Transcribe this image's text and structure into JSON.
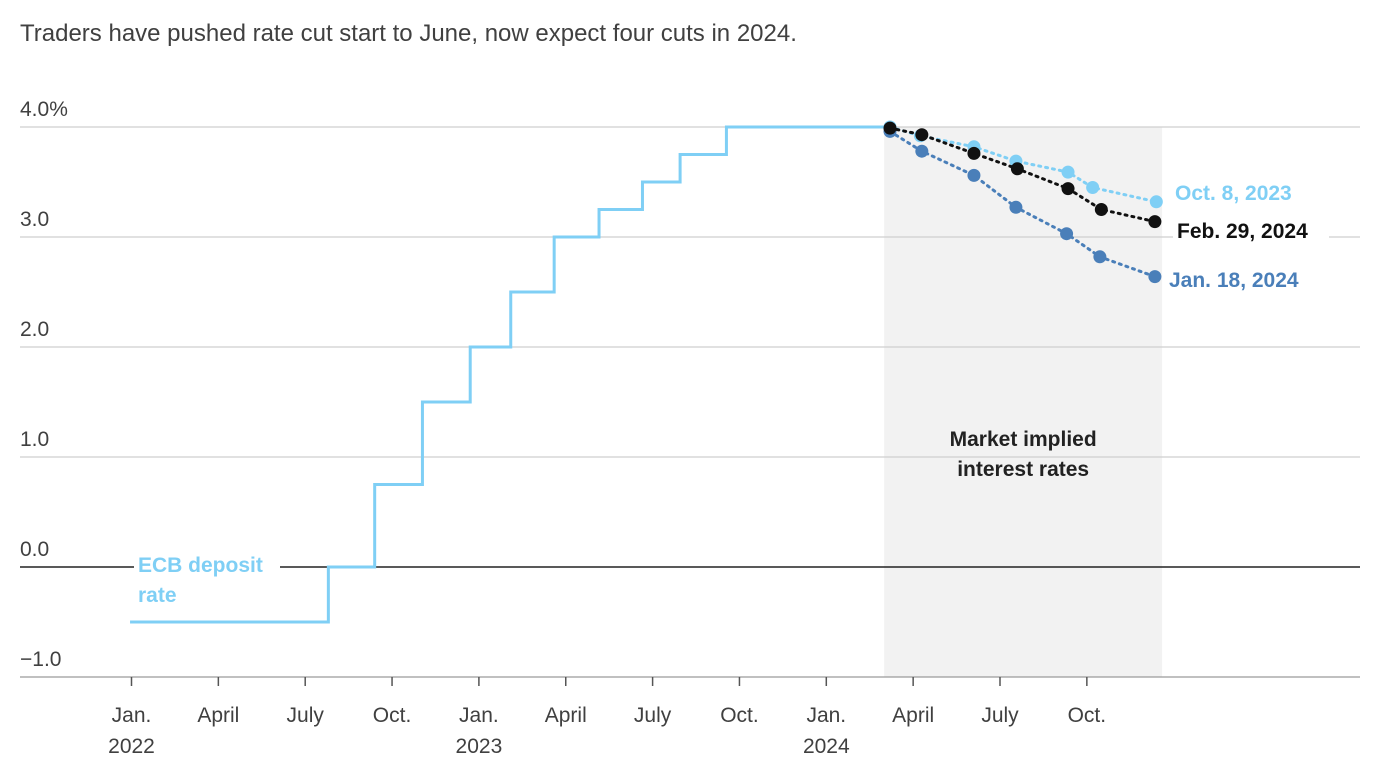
{
  "title": "Traders have pushed rate cut start to June, now expect four cuts in 2024.",
  "chart_data": {
    "type": "line",
    "title": "Traders have pushed rate cut start to June, now expect four cuts in 2024.",
    "ylim": [
      -1.0,
      4.0
    ],
    "y_ticks": [
      "4.0%",
      "3.0",
      "2.0",
      "1.0",
      "0.0",
      "−1.0"
    ],
    "y_tick_values": [
      4,
      3,
      2,
      1,
      0,
      -1
    ],
    "x_ticks": [
      {
        "label": "Jan.",
        "sub": "2022",
        "month": 0
      },
      {
        "label": "April",
        "sub": "",
        "month": 3
      },
      {
        "label": "July",
        "sub": "",
        "month": 6
      },
      {
        "label": "Oct.",
        "sub": "",
        "month": 9
      },
      {
        "label": "Jan.",
        "sub": "2023",
        "month": 12
      },
      {
        "label": "April",
        "sub": "",
        "month": 15
      },
      {
        "label": "July",
        "sub": "",
        "month": 18
      },
      {
        "label": "Oct.",
        "sub": "",
        "month": 21
      },
      {
        "label": "Jan.",
        "sub": "2024",
        "month": 24
      },
      {
        "label": "April",
        "sub": "",
        "month": 27
      },
      {
        "label": "July",
        "sub": "",
        "month": 30
      },
      {
        "label": "Oct.",
        "sub": "",
        "month": 33
      }
    ],
    "grid": true,
    "shaded_region": {
      "label_line1": "Market implied",
      "label_line2": "interest rates",
      "x_start": 26.0,
      "x_end": 35.6
    },
    "deposit_rate": {
      "name": "ECB deposit rate",
      "label_line1": "ECB deposit",
      "label_line2": "rate",
      "color": "#7fcff5",
      "steps": [
        {
          "x": -0.05,
          "y": -0.5
        },
        {
          "x": 6.8,
          "y": 0.0
        },
        {
          "x": 8.4,
          "y": 0.75
        },
        {
          "x": 10.05,
          "y": 1.5
        },
        {
          "x": 11.7,
          "y": 2.0
        },
        {
          "x": 13.1,
          "y": 2.5
        },
        {
          "x": 14.6,
          "y": 3.0
        },
        {
          "x": 16.15,
          "y": 3.25
        },
        {
          "x": 17.65,
          "y": 3.5
        },
        {
          "x": 18.95,
          "y": 3.75
        },
        {
          "x": 20.55,
          "y": 4.0
        }
      ],
      "end_x": 26.2
    },
    "series": [
      {
        "name": "Oct. 8, 2023",
        "color": "#7fcff5",
        "points": [
          [
            26.2,
            4.0
          ],
          [
            27.25,
            3.92
          ],
          [
            29.1,
            3.82
          ],
          [
            30.55,
            3.69
          ],
          [
            32.35,
            3.59
          ],
          [
            33.2,
            3.45
          ],
          [
            35.4,
            3.32
          ]
        ]
      },
      {
        "name": "Feb. 29, 2024",
        "color": "#111111",
        "points": [
          [
            26.2,
            3.99
          ],
          [
            27.3,
            3.93
          ],
          [
            29.1,
            3.76
          ],
          [
            30.6,
            3.62
          ],
          [
            32.35,
            3.44
          ],
          [
            33.5,
            3.25
          ],
          [
            35.35,
            3.14
          ]
        ]
      },
      {
        "name": "Jan. 18, 2024",
        "color": "#4a7fb9",
        "points": [
          [
            26.2,
            3.96
          ],
          [
            27.3,
            3.78
          ],
          [
            29.1,
            3.56
          ],
          [
            30.55,
            3.27
          ],
          [
            32.3,
            3.03
          ],
          [
            33.45,
            2.82
          ],
          [
            35.35,
            2.64
          ]
        ]
      }
    ]
  }
}
